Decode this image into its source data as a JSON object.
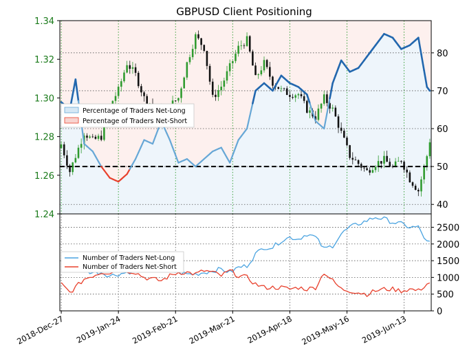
{
  "chart_data": [
    {
      "type": "candlestick",
      "title": "GBPUSD Client Positioning",
      "price_axis": {
        "ylim": [
          1.24,
          1.34
        ],
        "ticks": [
          1.24,
          1.26,
          1.28,
          1.3,
          1.32,
          1.34
        ],
        "tick_labels": [
          "1.24",
          "1.26",
          "1.28",
          "1.30",
          "1.32",
          "1.34"
        ],
        "color": "#1a7a1a"
      },
      "percent_axis": {
        "ylim": [
          37.5,
          88.5
        ],
        "ticks": [
          40,
          50,
          60,
          70,
          80
        ],
        "tick_labels": [
          "40",
          "50",
          "60",
          "70",
          "80"
        ]
      },
      "x": {
        "tick_labels": [
          "2018-Dec-27",
          "2019-Jan-24",
          "2019-Feb-21",
          "2019-Mar-21",
          "2019-Apr-18",
          "2019-May-16",
          "2019-Jun-13"
        ],
        "tick_index": [
          0,
          20,
          40,
          60,
          80,
          100,
          120
        ],
        "n_days": 130
      },
      "reference_line": {
        "value": 50,
        "style": "dashed",
        "color": "#000000"
      },
      "legend": {
        "position": "center-left",
        "entries": [
          "Percentage of Traders Net-Long",
          "Percentage of Traders Net-Short"
        ]
      },
      "candle_anchors": {
        "index": [
          0,
          3,
          5,
          8,
          11,
          14,
          17,
          20,
          23,
          26,
          29,
          32,
          35,
          38,
          41,
          44,
          47,
          50,
          53,
          56,
          59,
          62,
          65,
          68,
          71,
          74,
          77,
          80,
          83,
          86,
          89,
          92,
          95,
          98,
          101,
          104,
          107,
          110,
          113,
          116,
          119,
          122,
          125,
          128,
          129
        ],
        "close": [
          1.276,
          1.262,
          1.27,
          1.282,
          1.278,
          1.28,
          1.296,
          1.304,
          1.318,
          1.312,
          1.3,
          1.296,
          1.292,
          1.296,
          1.3,
          1.318,
          1.332,
          1.326,
          1.3,
          1.306,
          1.316,
          1.326,
          1.33,
          1.31,
          1.318,
          1.308,
          1.304,
          1.302,
          1.302,
          1.294,
          1.29,
          1.3,
          1.294,
          1.282,
          1.27,
          1.266,
          1.262,
          1.266,
          1.268,
          1.264,
          1.268,
          1.258,
          1.252,
          1.27,
          1.278
        ]
      },
      "percent_long": {
        "index": [
          0,
          3,
          5,
          8,
          11,
          14,
          17,
          20,
          23,
          26,
          29,
          32,
          35,
          38,
          41,
          44,
          47,
          50,
          53,
          56,
          59,
          62,
          65,
          68,
          71,
          74,
          77,
          80,
          83,
          86,
          89,
          92,
          95,
          98,
          101,
          104,
          107,
          110,
          113,
          116,
          119,
          122,
          125,
          128,
          129
        ],
        "values": [
          67,
          65,
          73,
          56,
          54,
          50,
          47,
          46,
          48,
          52,
          57,
          56,
          62,
          57,
          51,
          52,
          50,
          52,
          54,
          55,
          51,
          57,
          60,
          70,
          72,
          70,
          74,
          72,
          71,
          69,
          62,
          60,
          72,
          78,
          75,
          76,
          79,
          82,
          85,
          84,
          81,
          82,
          84,
          71,
          70
        ]
      },
      "lines": [
        {
          "name": "Percentage of Traders Net-Long",
          "color": "#66a7d6",
          "fill": "#d6e8f5"
        },
        {
          "name": "Percentage of Traders Net-Short",
          "color": "#e8402c",
          "fill": "#f8d4d0"
        }
      ]
    },
    {
      "type": "line",
      "ylim": [
        0,
        2900
      ],
      "ticks": [
        0,
        500,
        1000,
        1500,
        2000,
        2500
      ],
      "tick_labels": [
        "0",
        "500",
        "1000",
        "1500",
        "2000",
        "2500"
      ],
      "legend": {
        "position": "center-left",
        "entries": [
          "Number of Traders Net-Long",
          "Number of Traders Net-Short"
        ]
      },
      "series": [
        {
          "name": "Number of Traders Net-Long",
          "color": "#4aa3e0",
          "index": [
            0,
            3,
            5,
            8,
            11,
            14,
            17,
            20,
            23,
            26,
            29,
            32,
            35,
            38,
            41,
            44,
            47,
            50,
            53,
            56,
            59,
            62,
            65,
            68,
            71,
            74,
            77,
            80,
            83,
            86,
            89,
            92,
            95,
            98,
            101,
            104,
            107,
            110,
            113,
            116,
            119,
            122,
            125,
            128,
            129
          ],
          "values": [
            1300,
            1250,
            1250,
            1200,
            1150,
            1150,
            1050,
            1100,
            1150,
            1200,
            1250,
            1250,
            1300,
            1200,
            1150,
            1100,
            1100,
            1150,
            1200,
            1250,
            1150,
            1300,
            1350,
            1700,
            1900,
            1900,
            2100,
            2200,
            2150,
            2300,
            2200,
            1850,
            1950,
            2300,
            2500,
            2600,
            2700,
            2800,
            2750,
            2650,
            2600,
            2500,
            2500,
            2050,
            2050
          ]
        },
        {
          "name": "Number of Traders Net-Short",
          "color": "#e8402c",
          "index": [
            0,
            3,
            5,
            8,
            11,
            14,
            17,
            20,
            23,
            26,
            29,
            32,
            35,
            38,
            41,
            44,
            47,
            50,
            53,
            56,
            59,
            62,
            65,
            68,
            71,
            74,
            77,
            80,
            83,
            86,
            89,
            92,
            95,
            98,
            101,
            104,
            107,
            110,
            113,
            116,
            119,
            122,
            125,
            128,
            129
          ],
          "values": [
            800,
            550,
            700,
            950,
            1050,
            1150,
            1150,
            1250,
            1200,
            1150,
            1000,
            950,
            900,
            1050,
            1150,
            1150,
            1100,
            1200,
            1150,
            1050,
            1200,
            1050,
            1000,
            800,
            700,
            700,
            700,
            650,
            700,
            650,
            700,
            1150,
            900,
            650,
            600,
            550,
            500,
            600,
            650,
            650,
            600,
            650,
            600,
            800,
            850
          ]
        }
      ]
    }
  ]
}
